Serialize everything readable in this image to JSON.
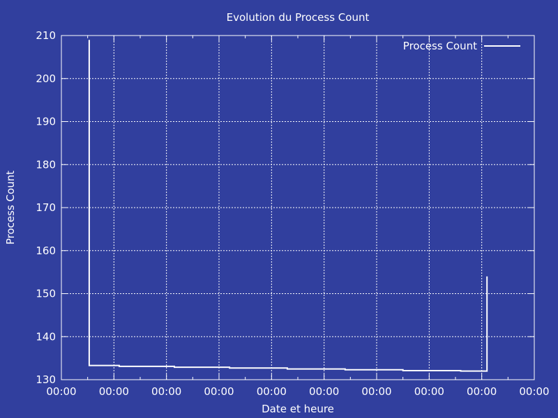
{
  "chart_data": {
    "type": "line",
    "title": "Evolution du Process Count",
    "xlabel": "Date et heure",
    "ylabel": "Process Count",
    "x_tick_labels": [
      "00:00",
      "00:00",
      "00:00",
      "00:00",
      "00:00",
      "00:00",
      "00:00",
      "00:00",
      "00:00",
      "00:00"
    ],
    "ylim": [
      130,
      210
    ],
    "yticks": [
      130,
      140,
      150,
      160,
      170,
      180,
      190,
      200,
      210
    ],
    "grid": true,
    "legend": "top-right",
    "series": [
      {
        "name": "Process Count",
        "color": "#ffffff",
        "points": [
          [
            0.53,
            209
          ],
          [
            0.53,
            133.3
          ],
          [
            1.1,
            133.3
          ],
          [
            1.1,
            133.1
          ],
          [
            2.15,
            133.1
          ],
          [
            2.15,
            132.9
          ],
          [
            3.2,
            132.9
          ],
          [
            3.2,
            132.7
          ],
          [
            4.3,
            132.7
          ],
          [
            4.3,
            132.5
          ],
          [
            5.4,
            132.5
          ],
          [
            5.4,
            132.3
          ],
          [
            6.5,
            132.3
          ],
          [
            6.5,
            132.1
          ],
          [
            7.6,
            132.1
          ],
          [
            7.6,
            132.0
          ],
          [
            8.1,
            132.0
          ],
          [
            8.1,
            154
          ]
        ]
      }
    ]
  },
  "colors": {
    "background": "#313f9e",
    "foreground": "#ffffff"
  }
}
